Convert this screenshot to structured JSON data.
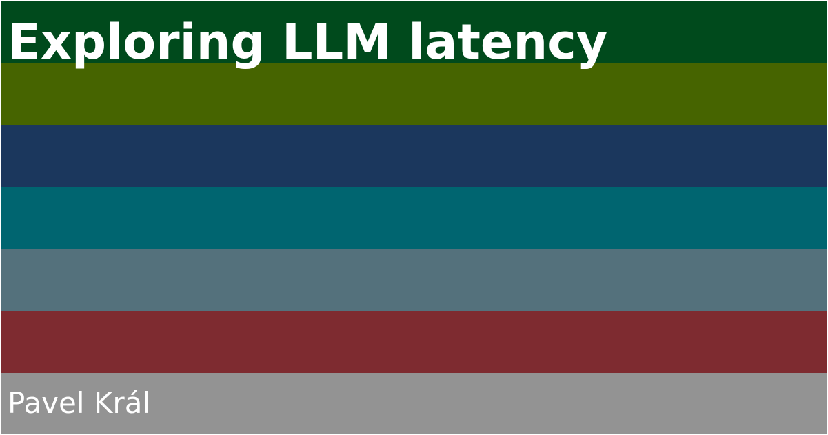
{
  "title": "Exploring LLM latency",
  "author": "Pavel Král",
  "stripes": [
    {
      "color": "#004a1c"
    },
    {
      "color": "#466400"
    },
    {
      "color": "#1b375d"
    },
    {
      "color": "#006570"
    },
    {
      "color": "#54717c"
    },
    {
      "color": "#7e2b30"
    },
    {
      "color": "#939393"
    }
  ]
}
